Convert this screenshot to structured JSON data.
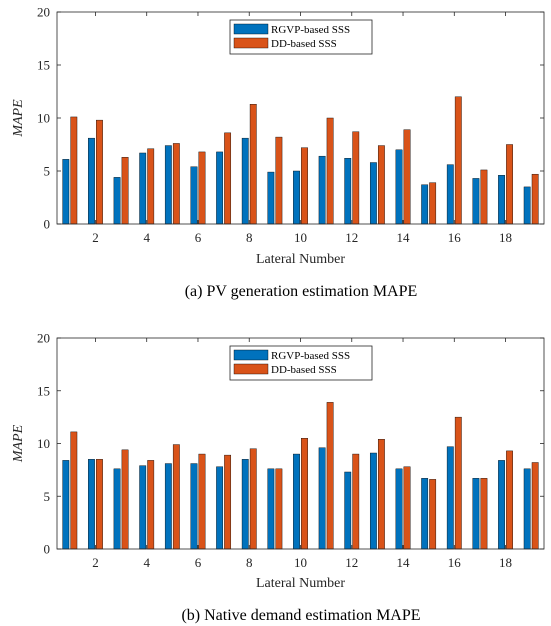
{
  "colors": {
    "rgvp": "#0072BD",
    "dd": "#D95319",
    "axis": "#262626"
  },
  "chart_data": [
    {
      "type": "bar",
      "caption": "(a) PV generation estimation MAPE",
      "xlabel": "Lateral Number",
      "ylabel": "MAPE",
      "xlim": [
        0.5,
        19.5
      ],
      "ylim": [
        0,
        20
      ],
      "xticks": [
        2,
        4,
        6,
        8,
        10,
        12,
        14,
        16,
        18
      ],
      "yticks": [
        0,
        5,
        10,
        15,
        20
      ],
      "legend_position": "top-center",
      "categories": [
        1,
        2,
        3,
        4,
        5,
        6,
        7,
        8,
        9,
        10,
        11,
        12,
        13,
        14,
        15,
        16,
        17,
        18,
        19
      ],
      "series": [
        {
          "name": "RGVP-based SSS",
          "values": [
            6.1,
            8.1,
            4.4,
            6.7,
            7.4,
            5.4,
            6.8,
            8.1,
            4.9,
            5.0,
            6.4,
            6.2,
            5.8,
            7.0,
            3.7,
            5.6,
            4.3,
            4.6,
            3.5
          ]
        },
        {
          "name": "DD-based SSS",
          "values": [
            10.1,
            9.8,
            6.3,
            7.1,
            7.6,
            6.8,
            8.6,
            11.3,
            8.2,
            7.2,
            10.0,
            8.7,
            7.4,
            8.9,
            3.9,
            12.0,
            5.1,
            7.5,
            4.7
          ]
        }
      ]
    },
    {
      "type": "bar",
      "caption": "(b) Native demand estimation MAPE",
      "xlabel": "Lateral Number",
      "ylabel": "MAPE",
      "xlim": [
        0.5,
        19.5
      ],
      "ylim": [
        0,
        20
      ],
      "xticks": [
        2,
        4,
        6,
        8,
        10,
        12,
        14,
        16,
        18
      ],
      "yticks": [
        0,
        5,
        10,
        15,
        20
      ],
      "legend_position": "top-center",
      "categories": [
        1,
        2,
        3,
        4,
        5,
        6,
        7,
        8,
        9,
        10,
        11,
        12,
        13,
        14,
        15,
        16,
        17,
        18,
        19
      ],
      "series": [
        {
          "name": "RGVP-based SSS",
          "values": [
            8.4,
            8.5,
            7.6,
            7.9,
            8.1,
            8.1,
            7.8,
            8.5,
            7.6,
            9.0,
            9.6,
            7.3,
            9.1,
            7.6,
            6.7,
            9.7,
            6.7,
            8.4,
            7.6
          ]
        },
        {
          "name": "DD-based SSS",
          "values": [
            11.1,
            8.5,
            9.4,
            8.4,
            9.9,
            9.0,
            8.9,
            9.5,
            7.6,
            10.5,
            13.9,
            9.0,
            10.4,
            7.8,
            6.6,
            12.5,
            6.7,
            9.3,
            8.2
          ]
        }
      ]
    }
  ]
}
